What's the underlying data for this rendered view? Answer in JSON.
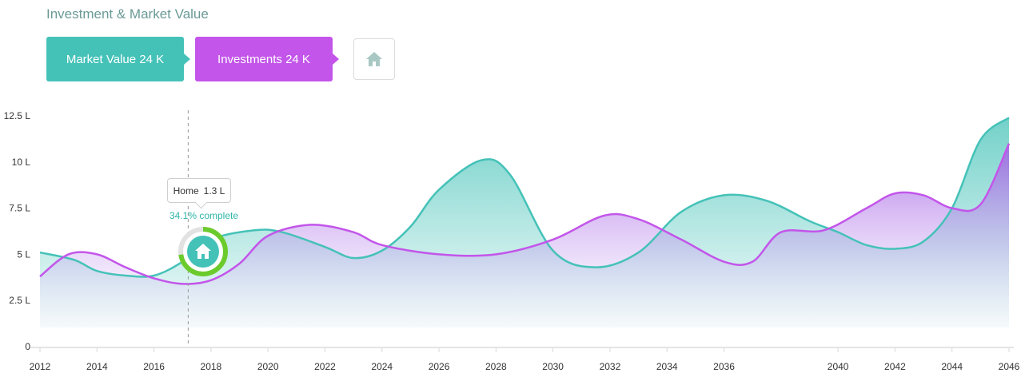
{
  "header": {
    "title": "Investment & Market Value"
  },
  "buttons": {
    "market_value_label": "Market Value 24 K",
    "investments_label": "Investments 24 K",
    "home_icon": "home-icon"
  },
  "tooltip": {
    "label": "Home",
    "value": "1.3 L",
    "progress_text": "34.1% complete",
    "progress_fraction": 0.341
  },
  "colors": {
    "market_value": "#45c2b8",
    "investments": "#c355ea",
    "progress_ring": "#6ccb2c",
    "progress_track": "#e2e2e2",
    "marker_fill": "#45c2b8"
  },
  "chart_data": {
    "type": "area",
    "x_ticks": [
      "2012",
      "2014",
      "2016",
      "2018",
      "2020",
      "2022",
      "2024",
      "2026",
      "2028",
      "2030",
      "2032",
      "2034",
      "2036",
      "2040",
      "2042",
      "2044",
      "2046"
    ],
    "y_ticks": [
      "0",
      "2.5 L",
      "5 L",
      "7.5 L",
      "10 L",
      "12.5 L"
    ],
    "ylim": [
      0,
      12.5
    ],
    "grid": false,
    "marker_year": 2017.2,
    "series": [
      {
        "name": "Market Value",
        "color": "#45c2b8",
        "points": [
          [
            2012,
            5.1
          ],
          [
            2013.2,
            4.7
          ],
          [
            2014,
            4.1
          ],
          [
            2015,
            3.85
          ],
          [
            2016,
            3.85
          ],
          [
            2017,
            4.6
          ],
          [
            2018,
            5.8
          ],
          [
            2019.5,
            6.3
          ],
          [
            2020.5,
            6.2
          ],
          [
            2022,
            5.4
          ],
          [
            2023,
            4.8
          ],
          [
            2024,
            5.2
          ],
          [
            2025,
            6.5
          ],
          [
            2026,
            8.5
          ],
          [
            2027.5,
            10.1
          ],
          [
            2028.5,
            9.3
          ],
          [
            2030,
            5.2
          ],
          [
            2031.5,
            4.3
          ],
          [
            2033,
            5.1
          ],
          [
            2034.5,
            7.3
          ],
          [
            2036,
            8.2
          ],
          [
            2037.5,
            7.9
          ],
          [
            2039,
            6.8
          ],
          [
            2040,
            6.2
          ],
          [
            2041,
            5.5
          ],
          [
            2042,
            5.3
          ],
          [
            2043,
            5.7
          ],
          [
            2044,
            7.5
          ],
          [
            2045,
            11.2
          ],
          [
            2046,
            12.4
          ]
        ]
      },
      {
        "name": "Investments",
        "color": "#c355ea",
        "points": [
          [
            2012,
            3.8
          ],
          [
            2013,
            5.0
          ],
          [
            2014,
            5.0
          ],
          [
            2015,
            4.3
          ],
          [
            2016,
            3.7
          ],
          [
            2017,
            3.4
          ],
          [
            2018,
            3.6
          ],
          [
            2019,
            4.5
          ],
          [
            2020,
            6.0
          ],
          [
            2021.5,
            6.6
          ],
          [
            2023,
            6.2
          ],
          [
            2024,
            5.5
          ],
          [
            2026,
            5.0
          ],
          [
            2028,
            5.0
          ],
          [
            2030,
            5.8
          ],
          [
            2031.8,
            7.1
          ],
          [
            2033,
            6.9
          ],
          [
            2034.5,
            5.8
          ],
          [
            2036,
            4.6
          ],
          [
            2037,
            4.6
          ],
          [
            2038,
            6.2
          ],
          [
            2039.5,
            6.3
          ],
          [
            2041,
            7.5
          ],
          [
            2042,
            8.3
          ],
          [
            2043,
            8.2
          ],
          [
            2044,
            7.5
          ],
          [
            2045,
            7.7
          ],
          [
            2046,
            11.0
          ]
        ]
      }
    ]
  }
}
